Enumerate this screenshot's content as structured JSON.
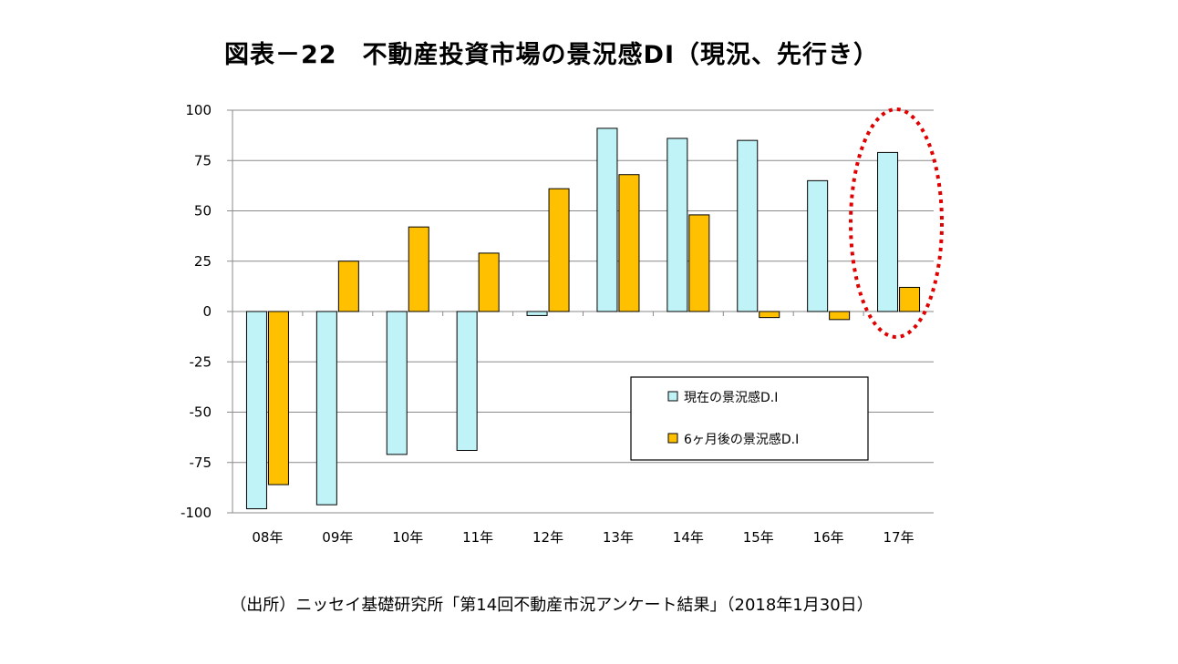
{
  "title": "図表－22　不動産投資市場の景況感DI（現況、先行き）",
  "source": "（出所）ニッセイ基礎研究所「第14回不動産市況アンケート結果」（2018年1月30日）",
  "chart_data": {
    "type": "bar",
    "categories": [
      "08年",
      "09年",
      "10年",
      "11年",
      "12年",
      "13年",
      "14年",
      "15年",
      "16年",
      "17年"
    ],
    "series": [
      {
        "name": "現在の景況感D.I",
        "color": "#BFF3F7",
        "values": [
          -98,
          -96,
          -71,
          -69,
          -2,
          91,
          86,
          85,
          65,
          79
        ]
      },
      {
        "name": "6ヶ月後の景況感D.I",
        "color": "#FFC000",
        "values": [
          -86,
          25,
          42,
          29,
          61,
          68,
          48,
          -3,
          -4,
          12
        ]
      }
    ],
    "ylim": [
      -100,
      100
    ],
    "yticks": [
      100,
      75,
      50,
      25,
      0,
      -25,
      -50,
      -75,
      -100
    ],
    "grid": true,
    "legend_position": "lower-right",
    "annotation": "red dotted ellipse highlighting 17年"
  }
}
